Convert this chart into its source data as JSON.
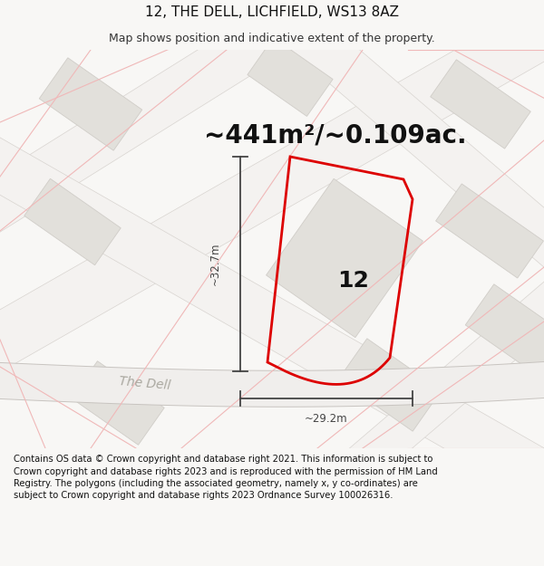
{
  "title": "12, THE DELL, LICHFIELD, WS13 8AZ",
  "subtitle": "Map shows position and indicative extent of the property.",
  "area_text": "~441m²/~0.109ac.",
  "label_12": "12",
  "dim_width": "~29.2m",
  "dim_height": "~32.7m",
  "road_label": "The Dell",
  "footer": "Contains OS data © Crown copyright and database right 2021. This information is subject to Crown copyright and database rights 2023 and is reproduced with the permission of HM Land Registry. The polygons (including the associated geometry, namely x, y co-ordinates) are subject to Crown copyright and database rights 2023 Ordnance Survey 100026316.",
  "bg_color": "#f8f7f5",
  "map_bg": "#f8f7f5",
  "building_color": "#e2e0db",
  "building_edge": "#d0cdc8",
  "plot_color": "#dd0000",
  "dim_color": "#444444",
  "road_line_color": "#f0b8b8",
  "road_bg_color": "#ffffff",
  "title_fontsize": 11,
  "subtitle_fontsize": 9,
  "area_fontsize": 20,
  "label_fontsize": 18,
  "footer_fontsize": 7.2,
  "road_label_fontsize": 10,
  "dim_fontsize": 8.5
}
